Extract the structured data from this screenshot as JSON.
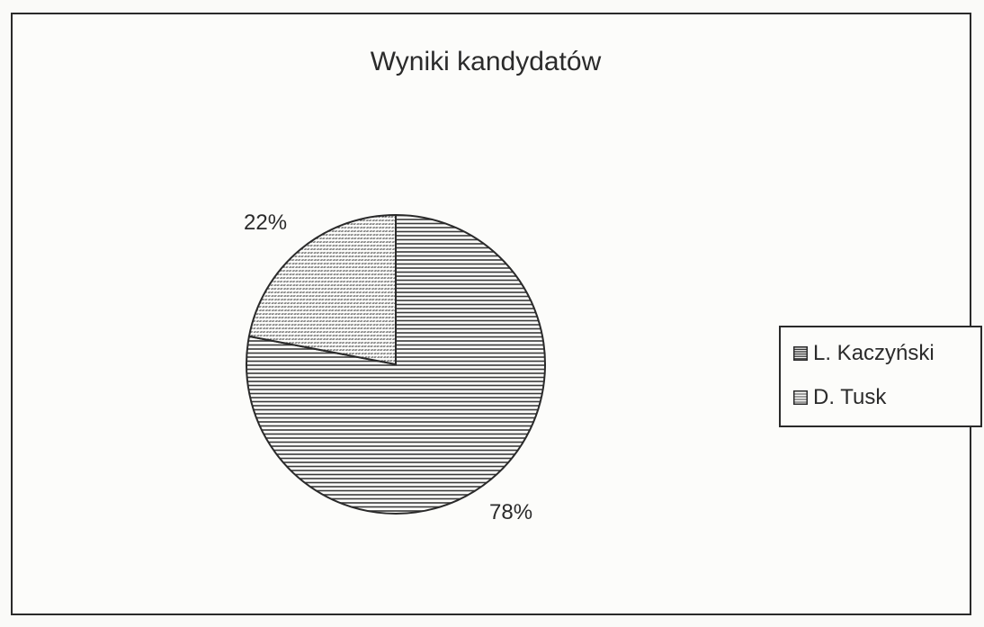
{
  "chart_data": {
    "type": "pie",
    "title": "Wyniki kandydatów",
    "labels": [
      "L. Kaczyński",
      "D. Tusk"
    ],
    "values": [
      78,
      22
    ],
    "unit": "%",
    "data_labels": [
      "78%",
      "22%"
    ],
    "legend": {
      "placement": "right",
      "entries": [
        "L. Kaczyński",
        "D. Tusk"
      ]
    },
    "fills": [
      "horizontal-stripes",
      "diagonal-stripes"
    ],
    "colors": {
      "stroke": "#2a2a2a",
      "pattern": "#3a3a3a",
      "background": "#fcfcfa"
    }
  }
}
